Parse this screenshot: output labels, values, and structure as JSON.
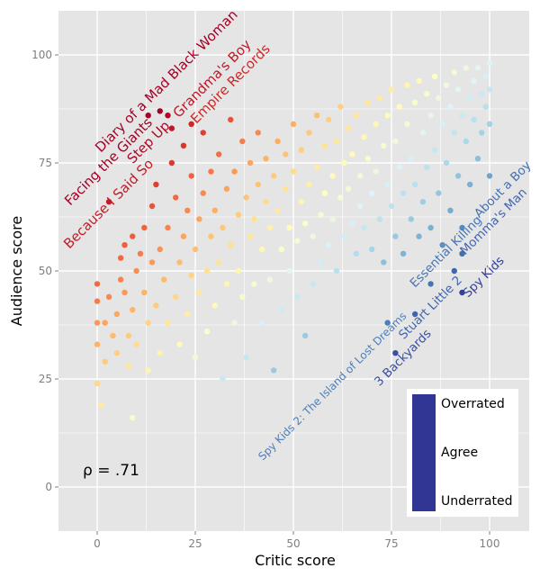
{
  "chart_data": {
    "type": "scatter",
    "xlabel": "Critic score",
    "ylabel": "Audience score",
    "xlim": [
      -10,
      110
    ],
    "ylim": [
      -10,
      110
    ],
    "x_ticks": [
      "0",
      "25",
      "50",
      "75",
      "100"
    ],
    "y_ticks": [
      "0",
      "25",
      "50",
      "75",
      "100"
    ],
    "grid": true,
    "annotation": "ρ = .71",
    "color_scale": {
      "meaning": "audience minus critic score",
      "colors": [
        "#313695",
        "#4575b4",
        "#74add1",
        "#abd9e9",
        "#e0f3f8",
        "#ffffbf",
        "#fee090",
        "#fdae61",
        "#f46d43",
        "#d73027",
        "#a50026"
      ],
      "legend_labels": [
        "Overrated",
        "Agree",
        "Underrated"
      ],
      "legend_position": "bottom-right"
    },
    "labeled_points": [
      {
        "name": "Diary of a Mad Black Woman",
        "x": 16,
        "y": 87
      },
      {
        "name": "Facing the Giants",
        "x": 13,
        "y": 86
      },
      {
        "name": "Step Up",
        "x": 18,
        "y": 86
      },
      {
        "name": "Grandma's Boy",
        "x": 19,
        "y": 83
      },
      {
        "name": "Empire Records",
        "x": 24,
        "y": 84
      },
      {
        "name": "Because I Said So",
        "x": 3,
        "y": 66
      },
      {
        "name": "About a Boy",
        "x": 93,
        "y": 54
      },
      {
        "name": "Momma's Man",
        "x": 91,
        "y": 50
      },
      {
        "name": "Spy Kids",
        "x": 93,
        "y": 45
      },
      {
        "name": "Essential Killing",
        "x": 85,
        "y": 47
      },
      {
        "name": "Stuart Little 2",
        "x": 81,
        "y": 40
      },
      {
        "name": "3 Backyards",
        "x": 76,
        "y": 31
      },
      {
        "name": "Spy Kids 2: The Island of Lost Dreams",
        "x": 74,
        "y": 38
      }
    ],
    "points": [
      [
        0,
        47
      ],
      [
        0,
        43
      ],
      [
        0,
        38
      ],
      [
        0,
        33
      ],
      [
        0,
        24
      ],
      [
        1,
        19
      ],
      [
        2,
        29
      ],
      [
        2,
        38
      ],
      [
        3,
        44
      ],
      [
        4,
        35
      ],
      [
        5,
        31
      ],
      [
        5,
        40
      ],
      [
        6,
        48
      ],
      [
        6,
        53
      ],
      [
        7,
        45
      ],
      [
        8,
        35
      ],
      [
        8,
        28
      ],
      [
        9,
        16
      ],
      [
        9,
        41
      ],
      [
        10,
        50
      ],
      [
        10,
        33
      ],
      [
        7,
        56
      ],
      [
        9,
        58
      ],
      [
        11,
        54
      ],
      [
        12,
        60
      ],
      [
        12,
        45
      ],
      [
        13,
        38
      ],
      [
        13,
        27
      ],
      [
        14,
        52
      ],
      [
        14,
        65
      ],
      [
        15,
        70
      ],
      [
        15,
        42
      ],
      [
        16,
        55
      ],
      [
        16,
        31
      ],
      [
        17,
        48
      ],
      [
        18,
        60
      ],
      [
        18,
        38
      ],
      [
        19,
        75
      ],
      [
        20,
        67
      ],
      [
        20,
        44
      ],
      [
        21,
        52
      ],
      [
        21,
        33
      ],
      [
        22,
        58
      ],
      [
        22,
        79
      ],
      [
        23,
        40
      ],
      [
        23,
        64
      ],
      [
        24,
        49
      ],
      [
        24,
        72
      ],
      [
        25,
        55
      ],
      [
        25,
        30
      ],
      [
        26,
        62
      ],
      [
        26,
        45
      ],
      [
        27,
        82
      ],
      [
        27,
        68
      ],
      [
        28,
        50
      ],
      [
        28,
        36
      ],
      [
        29,
        73
      ],
      [
        29,
        58
      ],
      [
        30,
        42
      ],
      [
        30,
        64
      ],
      [
        31,
        77
      ],
      [
        31,
        52
      ],
      [
        32,
        25
      ],
      [
        32,
        60
      ],
      [
        33,
        69
      ],
      [
        33,
        47
      ],
      [
        34,
        85
      ],
      [
        34,
        56
      ],
      [
        35,
        38
      ],
      [
        35,
        73
      ],
      [
        36,
        63
      ],
      [
        36,
        50
      ],
      [
        37,
        80
      ],
      [
        37,
        44
      ],
      [
        38,
        67
      ],
      [
        38,
        30
      ],
      [
        39,
        58
      ],
      [
        39,
        75
      ],
      [
        40,
        62
      ],
      [
        40,
        47
      ],
      [
        41,
        70
      ],
      [
        41,
        82
      ],
      [
        42,
        55
      ],
      [
        42,
        38
      ],
      [
        43,
        66
      ],
      [
        43,
        76
      ],
      [
        44,
        60
      ],
      [
        44,
        48
      ],
      [
        45,
        72
      ],
      [
        45,
        27
      ],
      [
        46,
        64
      ],
      [
        46,
        80
      ],
      [
        47,
        55
      ],
      [
        47,
        41
      ],
      [
        48,
        69
      ],
      [
        48,
        77
      ],
      [
        49,
        60
      ],
      [
        49,
        50
      ],
      [
        50,
        73
      ],
      [
        50,
        84
      ],
      [
        51,
        57
      ],
      [
        51,
        44
      ],
      [
        52,
        66
      ],
      [
        52,
        78
      ],
      [
        53,
        61
      ],
      [
        53,
        35
      ],
      [
        54,
        70
      ],
      [
        54,
        82
      ],
      [
        55,
        58
      ],
      [
        55,
        47
      ],
      [
        56,
        74
      ],
      [
        56,
        86
      ],
      [
        57,
        63
      ],
      [
        57,
        52
      ],
      [
        58,
        79
      ],
      [
        58,
        68
      ],
      [
        59,
        56
      ],
      [
        59,
        85
      ],
      [
        60,
        72
      ],
      [
        60,
        62
      ],
      [
        61,
        80
      ],
      [
        61,
        50
      ],
      [
        62,
        67
      ],
      [
        62,
        88
      ],
      [
        63,
        75
      ],
      [
        63,
        58
      ],
      [
        64,
        83
      ],
      [
        64,
        69
      ],
      [
        65,
        61
      ],
      [
        65,
        77
      ],
      [
        66,
        86
      ],
      [
        66,
        54
      ],
      [
        67,
        72
      ],
      [
        67,
        65
      ],
      [
        68,
        81
      ],
      [
        68,
        60
      ],
      [
        69,
        76
      ],
      [
        69,
        89
      ],
      [
        70,
        68
      ],
      [
        70,
        55
      ],
      [
        71,
        84
      ],
      [
        71,
        73
      ],
      [
        72,
        62
      ],
      [
        72,
        90
      ],
      [
        73,
        79
      ],
      [
        73,
        52
      ],
      [
        74,
        86
      ],
      [
        74,
        70
      ],
      [
        75,
        65
      ],
      [
        75,
        92
      ],
      [
        76,
        80
      ],
      [
        76,
        58
      ],
      [
        77,
        74
      ],
      [
        77,
        88
      ],
      [
        78,
        68
      ],
      [
        78,
        54
      ],
      [
        79,
        84
      ],
      [
        79,
        93
      ],
      [
        80,
        76
      ],
      [
        80,
        62
      ],
      [
        81,
        89
      ],
      [
        81,
        70
      ],
      [
        82,
        58
      ],
      [
        82,
        94
      ],
      [
        83,
        82
      ],
      [
        83,
        66
      ],
      [
        84,
        91
      ],
      [
        84,
        74
      ],
      [
        85,
        60
      ],
      [
        85,
        86
      ],
      [
        86,
        95
      ],
      [
        86,
        78
      ],
      [
        87,
        68
      ],
      [
        87,
        90
      ],
      [
        88,
        84
      ],
      [
        88,
        56
      ],
      [
        89,
        93
      ],
      [
        89,
        75
      ],
      [
        90,
        88
      ],
      [
        90,
        64
      ],
      [
        91,
        96
      ],
      [
        91,
        82
      ],
      [
        92,
        72
      ],
      [
        92,
        92
      ],
      [
        93,
        86
      ],
      [
        93,
        60
      ],
      [
        94,
        97
      ],
      [
        94,
        80
      ],
      [
        95,
        90
      ],
      [
        95,
        70
      ],
      [
        96,
        94
      ],
      [
        96,
        85
      ],
      [
        97,
        76
      ],
      [
        97,
        97
      ],
      [
        98,
        91
      ],
      [
        98,
        82
      ],
      [
        99,
        95
      ],
      [
        99,
        88
      ],
      [
        100,
        98
      ],
      [
        100,
        92
      ],
      [
        100,
        84
      ],
      [
        100,
        72
      ]
    ]
  }
}
